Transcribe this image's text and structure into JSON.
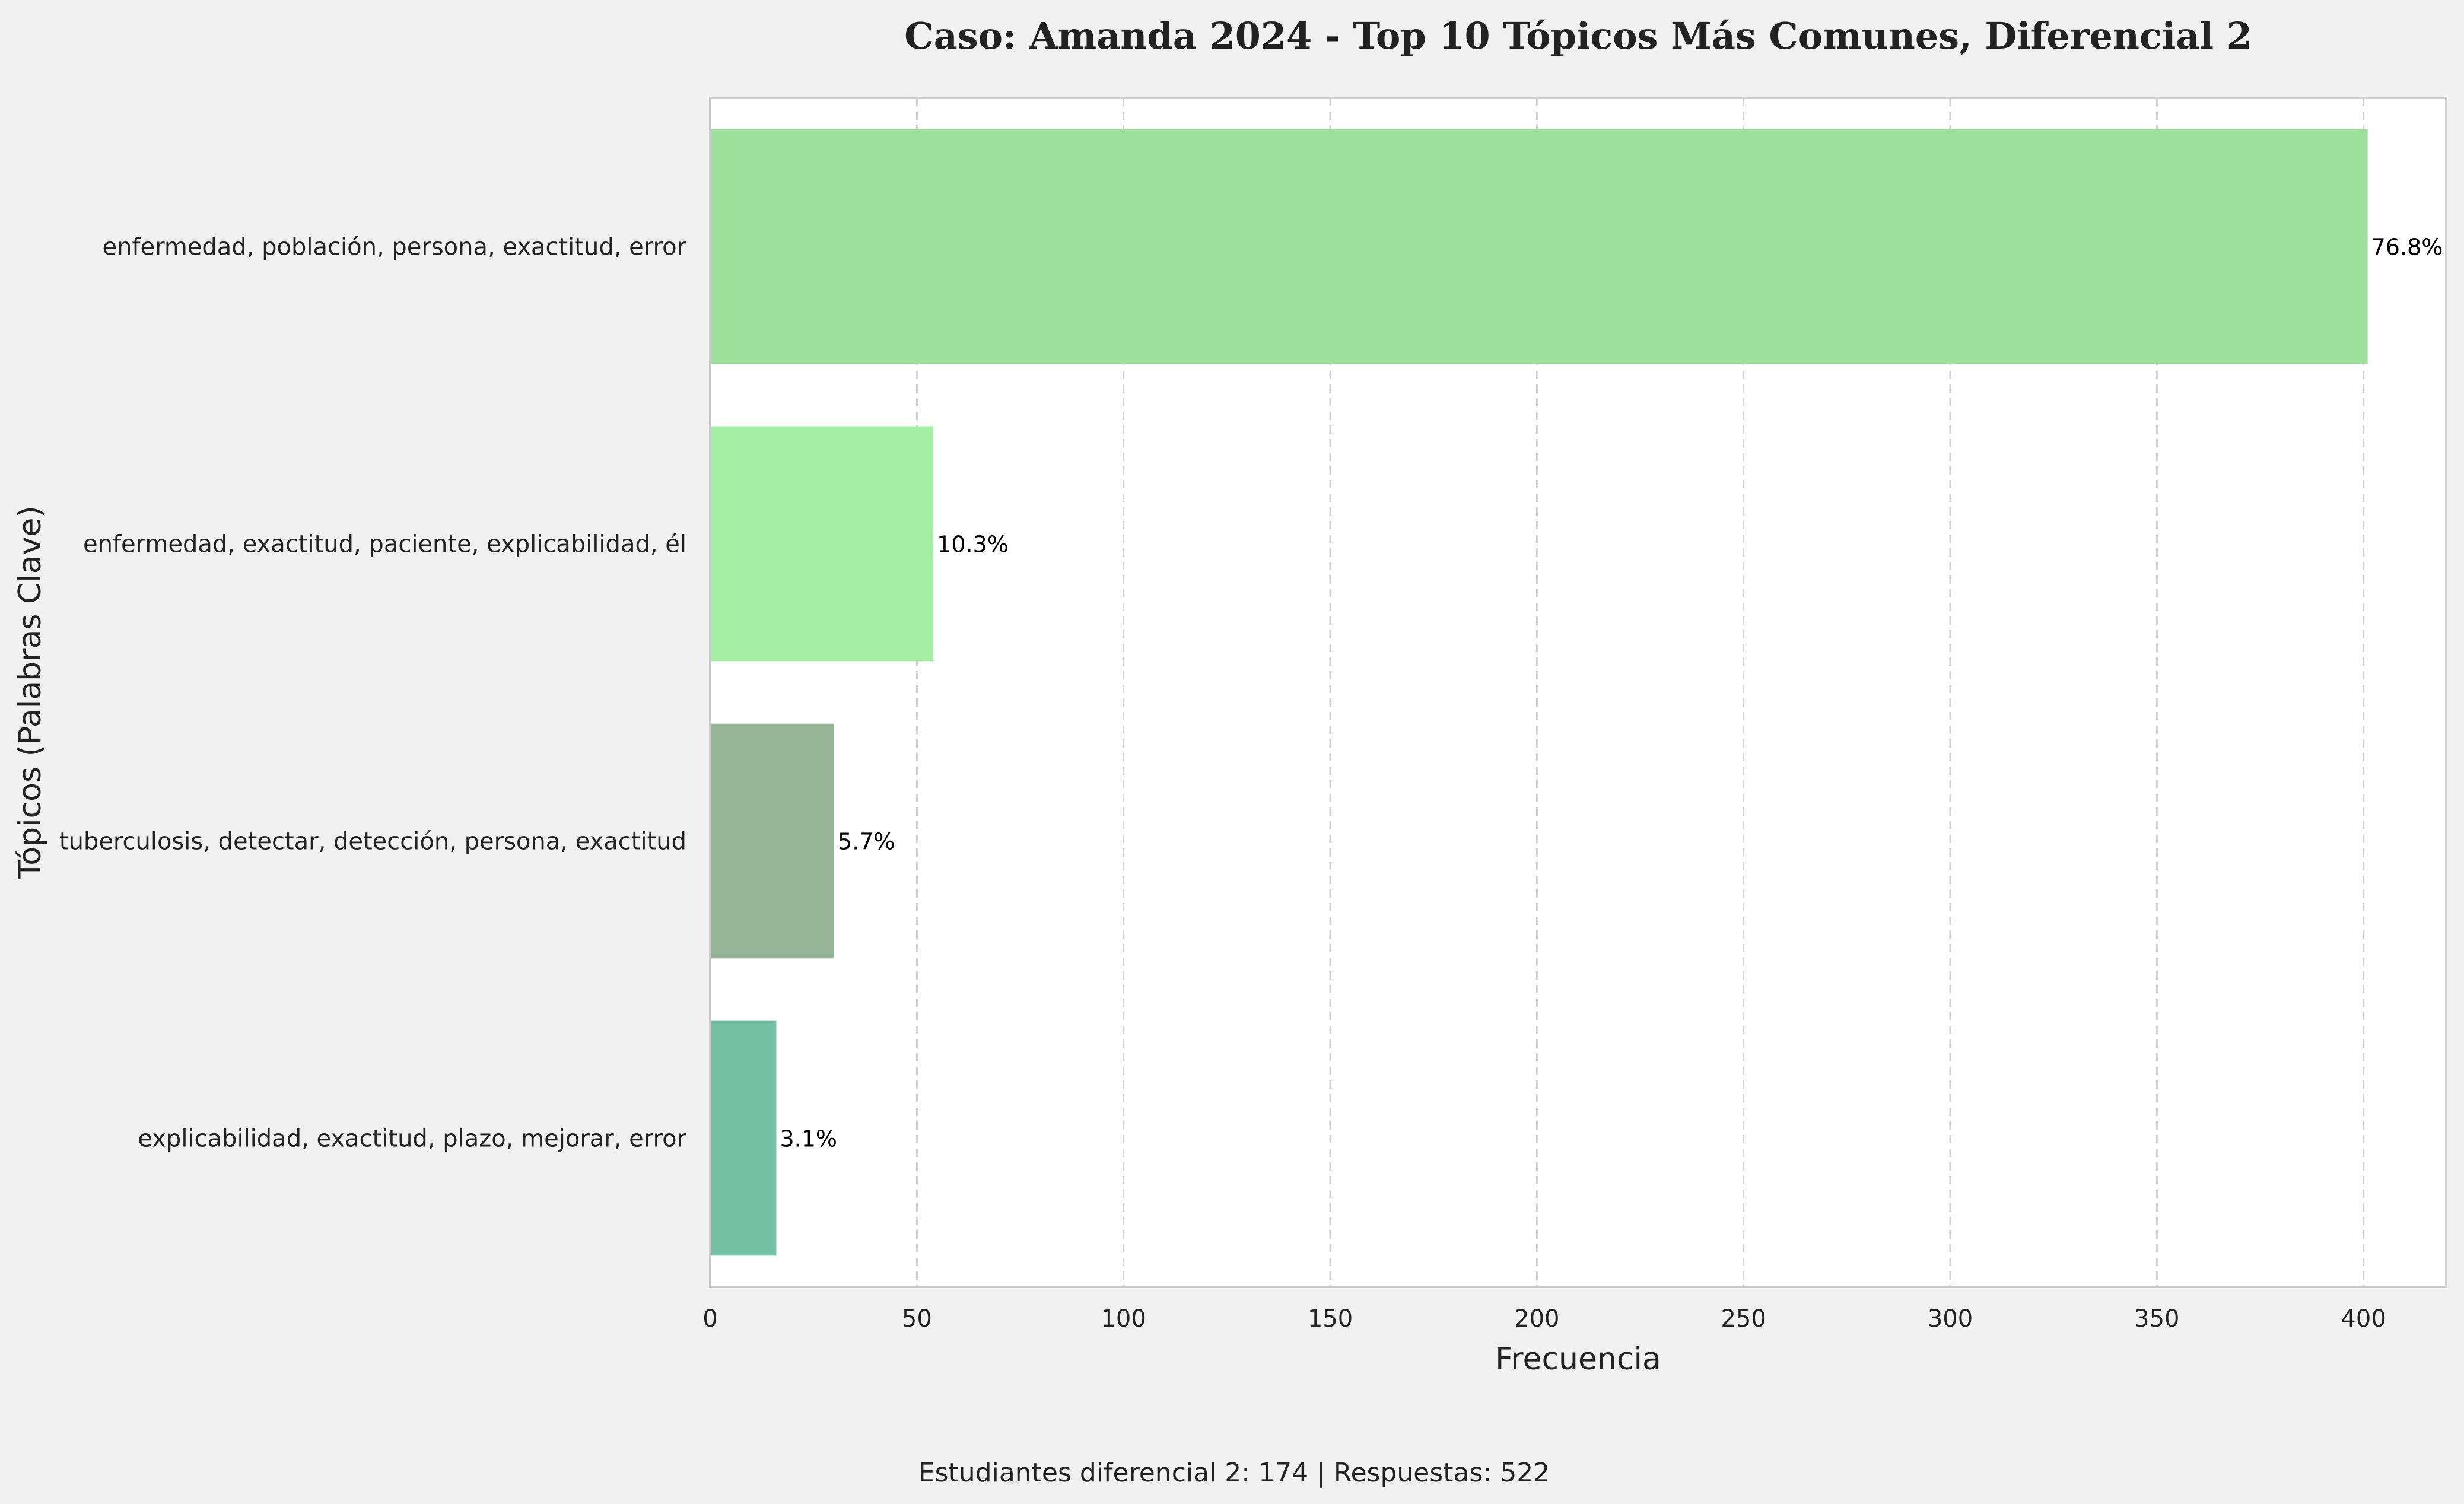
{
  "chart_data": {
    "type": "bar",
    "orientation": "horizontal",
    "title": "Caso: Amanda 2024 - Top 10 Tópicos Más Comunes, Diferencial 2",
    "xlabel": "Frecuencia",
    "ylabel": "Tópicos (Palabras Clave)",
    "xlim": [
      0,
      420
    ],
    "xticks": [
      0,
      50,
      100,
      150,
      200,
      250,
      300,
      350,
      400
    ],
    "grid": "x-dashed",
    "categories": [
      "enfermedad, población, persona, exactitud, error",
      "enfermedad, exactitud, paciente, explicabilidad, él",
      "tuberculosis, detectar, detección, persona, exactitud",
      "explicabilidad, exactitud, plazo, mejorar, error"
    ],
    "values": [
      401,
      54,
      30,
      16
    ],
    "labels": [
      "76.8%",
      "10.3%",
      "5.7%",
      "3.1%"
    ],
    "colors": [
      "#9ce09c",
      "#a3eea3",
      "#96b596",
      "#73c0a5"
    ],
    "footnote": "Estudiantes diferencial 2: 174 | Respuestas: 522"
  }
}
